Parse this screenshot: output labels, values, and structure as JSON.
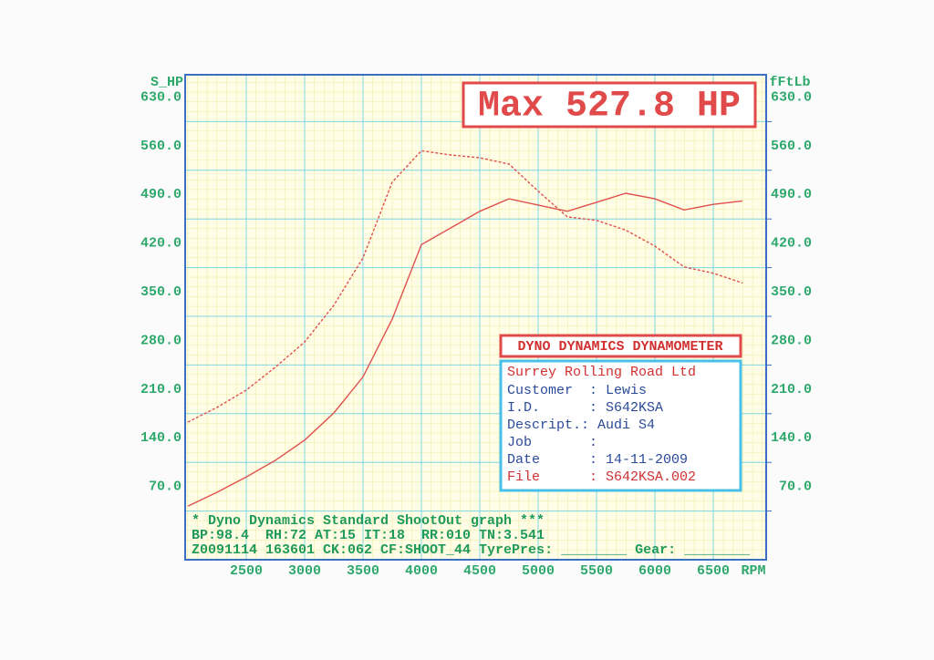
{
  "chart_data": {
    "type": "line",
    "ylabel": "S_HP",
    "y2label": "fFtLb",
    "xlabel": "RPM",
    "annotation": "Max 527.8 HP",
    "x": [
      2000,
      2250,
      2500,
      2750,
      3000,
      3250,
      3500,
      3750,
      4000,
      4250,
      4500,
      4750,
      5000,
      5250,
      5500,
      5750,
      6000,
      6250,
      6500,
      6750
    ],
    "series": [
      {
        "color": "#e05050",
        "line_style": "solid",
        "values": [
          77,
          97,
          119,
          143,
          172,
          211,
          263,
          346,
          453,
          477,
          501,
          519,
          510,
          501,
          514,
          527,
          519,
          503,
          511,
          516
        ]
      },
      {
        "color": "#e05050",
        "line_style": "dashed",
        "axis": "y2",
        "values": [
          198,
          219,
          244,
          277,
          313,
          366,
          434,
          543,
          588,
          582,
          578,
          569,
          530,
          493,
          488,
          474,
          451,
          421,
          412,
          398
        ]
      }
    ],
    "xlim": [
      2000,
      7000
    ],
    "xticks": [
      2500,
      3000,
      3500,
      4000,
      4500,
      5000,
      5500,
      6000,
      6500
    ],
    "ylim": [
      0,
      700
    ],
    "yticks": [
      {
        "value": 70,
        "label": "70.0"
      },
      {
        "value": 140,
        "label": "140.0"
      },
      {
        "value": 210,
        "label": "210.0"
      },
      {
        "value": 280,
        "label": "280.0"
      },
      {
        "value": 350,
        "label": "350.0"
      },
      {
        "value": 420,
        "label": "420.0"
      },
      {
        "value": 490,
        "label": "490.0"
      },
      {
        "value": 560,
        "label": "560.0"
      },
      {
        "value": 630,
        "label": "630.0"
      }
    ],
    "y2lim": [
      0,
      700
    ],
    "y2ticks": [
      {
        "value": 70,
        "label": "70.0"
      },
      {
        "value": 140,
        "label": "140.0"
      },
      {
        "value": 210,
        "label": "210.0"
      },
      {
        "value": 280,
        "label": "280.0"
      },
      {
        "value": 350,
        "label": "350.0"
      },
      {
        "value": 420,
        "label": "420.0"
      },
      {
        "value": 490,
        "label": "490.0"
      },
      {
        "value": 560,
        "label": "560.0"
      },
      {
        "value": 630,
        "label": "630.0"
      }
    ],
    "grid": true,
    "info_box": {
      "heading": "DYNO DYNAMICS DYNAMOMETER",
      "company": "Surrey Rolling Road Ltd",
      "rows": [
        "Customer  : Lewis",
        "I.D.      : S642KSA",
        "Descript.: Audi S4",
        "Job       :",
        "Date      : 14-11-2009"
      ],
      "file_row": "File      : S642KSA.002"
    },
    "footer": [
      "* Dyno Dynamics Standard ShootOut graph ***",
      "BP:98.4  RH:72 AT:15 IT:18  RR:010 TN:3.541",
      "Z0091114 163601 CK:062 CF:SHOOT_44 TyrePres: ________ Gear: ________"
    ]
  }
}
